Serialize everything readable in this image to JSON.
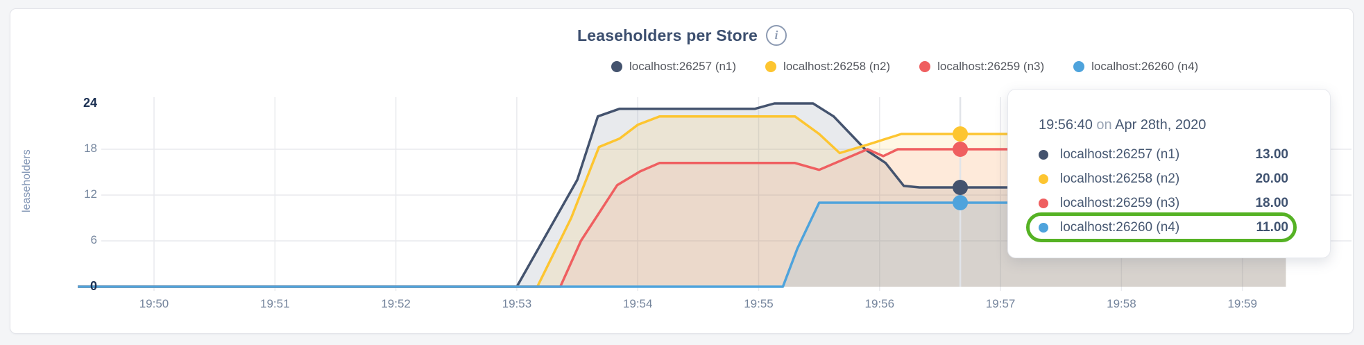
{
  "panel": {
    "title": "Leaseholders per Store",
    "info_icon": "i"
  },
  "legend": {
    "items": [
      {
        "label": "localhost:26257 (n1)",
        "color": "#44536e"
      },
      {
        "label": "localhost:26258 (n2)",
        "color": "#fdc530"
      },
      {
        "label": "localhost:26259 (n3)",
        "color": "#ef5f60"
      },
      {
        "label": "localhost:26260 (n4)",
        "color": "#4ea3dc"
      }
    ]
  },
  "chart_data": {
    "type": "area",
    "title": "Leaseholders per Store",
    "ylabel": "leaseholders",
    "xlabel": "",
    "grid": true,
    "grid_color": "#e9eaee",
    "legend_position": "top",
    "x_ticks": [
      "19:50",
      "19:51",
      "19:52",
      "19:53",
      "19:54",
      "19:55",
      "19:56",
      "19:57",
      "19:58",
      "19:59"
    ],
    "x_window": [
      "19:49:20",
      "19:59:22"
    ],
    "ylim": [
      0,
      27
    ],
    "y_ticks": [
      {
        "value": 0,
        "label": "0",
        "bold": true,
        "grid": false
      },
      {
        "value": 6,
        "label": "6",
        "bold": false,
        "grid": true
      },
      {
        "value": 12,
        "label": "12",
        "bold": false,
        "grid": true
      },
      {
        "value": 18,
        "label": "18",
        "bold": false,
        "grid": true
      },
      {
        "value": 24,
        "label": "24",
        "bold": true,
        "grid": false
      }
    ],
    "series_note": "points are [minutes after 19:50, leaseholder count]",
    "series": [
      {
        "name": "localhost:26257 (n1)",
        "color": "#44536e",
        "fill_opacity": 0.12,
        "points": [
          [
            -0.63,
            0
          ],
          [
            3.0,
            0
          ],
          [
            3.5,
            14
          ],
          [
            3.67,
            22.3
          ],
          [
            3.85,
            23.3
          ],
          [
            4.97,
            23.3
          ],
          [
            5.13,
            24
          ],
          [
            5.45,
            24
          ],
          [
            5.62,
            22.3
          ],
          [
            5.88,
            18
          ],
          [
            6.05,
            16.2
          ],
          [
            6.2,
            13.2
          ],
          [
            6.33,
            13
          ],
          [
            9.36,
            13
          ]
        ]
      },
      {
        "name": "localhost:26258 (n2)",
        "color": "#fdc530",
        "fill_opacity": 0.13,
        "points": [
          [
            -0.63,
            0
          ],
          [
            3.17,
            0
          ],
          [
            3.45,
            9
          ],
          [
            3.68,
            18.3
          ],
          [
            3.85,
            19.4
          ],
          [
            4.0,
            21.2
          ],
          [
            4.18,
            22.3
          ],
          [
            5.3,
            22.3
          ],
          [
            5.5,
            20
          ],
          [
            5.67,
            17.5
          ],
          [
            5.9,
            18.6
          ],
          [
            6.18,
            20
          ],
          [
            9.36,
            20
          ]
        ]
      },
      {
        "name": "localhost:26259 (n3)",
        "color": "#ef5f60",
        "fill_opacity": 0.08,
        "points": [
          [
            -0.63,
            0
          ],
          [
            3.36,
            0
          ],
          [
            3.53,
            6
          ],
          [
            3.83,
            13.3
          ],
          [
            4.02,
            15.1
          ],
          [
            4.18,
            16.2
          ],
          [
            5.3,
            16.2
          ],
          [
            5.5,
            15.3
          ],
          [
            5.9,
            18
          ],
          [
            6.03,
            17.1
          ],
          [
            6.15,
            18
          ],
          [
            9.36,
            18
          ]
        ]
      },
      {
        "name": "localhost:26260 (n4)",
        "color": "#4ea3dc",
        "fill_opacity": 0.12,
        "points": [
          [
            -0.63,
            0
          ],
          [
            5.2,
            0
          ],
          [
            5.32,
            5
          ],
          [
            5.5,
            11
          ],
          [
            9.36,
            11
          ]
        ]
      }
    ],
    "hover": {
      "time": "19:56:40",
      "minutes_after_1950": 6.667,
      "line_color": "#e1e4e9",
      "marker_values": [
        13,
        20,
        18,
        11
      ]
    }
  },
  "tooltip": {
    "time": "19:56:40",
    "separator": "on",
    "date": "Apr 28th, 2020",
    "highlight_color": "#55b224",
    "rows": [
      {
        "label": "localhost:26257 (n1)",
        "value": "13.00",
        "color": "#44536e",
        "highlighted": false
      },
      {
        "label": "localhost:26258 (n2)",
        "value": "20.00",
        "color": "#fdc530",
        "highlighted": false
      },
      {
        "label": "localhost:26259 (n3)",
        "value": "18.00",
        "color": "#ef5f60",
        "highlighted": false
      },
      {
        "label": "localhost:26260 (n4)",
        "value": "11.00",
        "color": "#4ea3dc",
        "highlighted": true
      }
    ]
  }
}
